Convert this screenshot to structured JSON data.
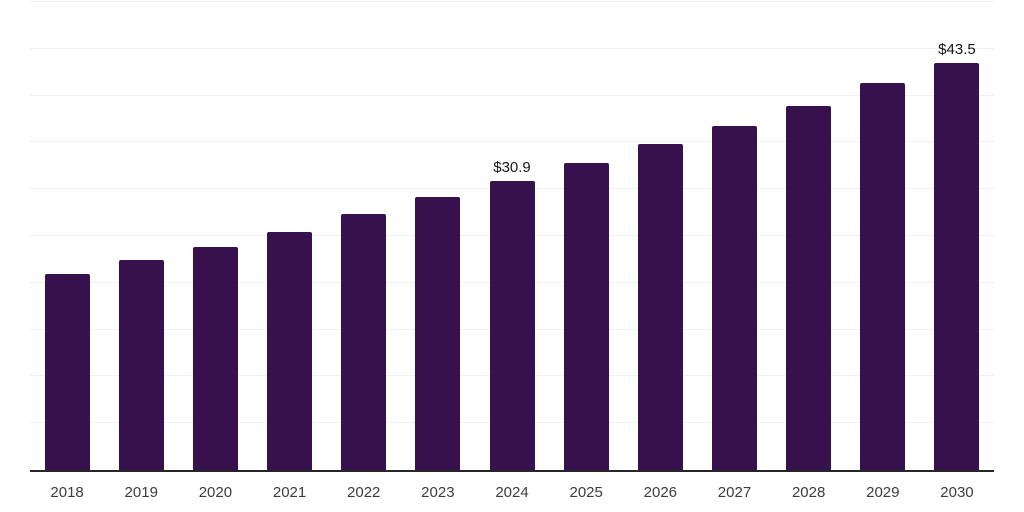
{
  "chart_data": {
    "type": "bar",
    "title": "",
    "xlabel": "",
    "ylabel": "",
    "categories": [
      "2018",
      "2019",
      "2020",
      "2021",
      "2022",
      "2023",
      "2024",
      "2025",
      "2026",
      "2027",
      "2028",
      "2029",
      "2030"
    ],
    "values": [
      20.9,
      22.4,
      23.8,
      25.4,
      27.3,
      29.2,
      30.9,
      32.8,
      34.8,
      36.8,
      38.9,
      41.3,
      43.5
    ],
    "data_labels": [
      null,
      null,
      null,
      null,
      null,
      null,
      "$30.9",
      null,
      null,
      null,
      null,
      null,
      "$43.5"
    ],
    "ylim": [
      0,
      50
    ],
    "gridline_step": 5,
    "grid": true,
    "y_tick_labels_shown": false,
    "legend_position": "none",
    "colors": {
      "bar": "#37114d",
      "axis": "#262626",
      "gridline": "#f1f1f1",
      "value_label": "#141414",
      "tick_label": "#3c3c3c",
      "background": "#ffffff"
    }
  }
}
